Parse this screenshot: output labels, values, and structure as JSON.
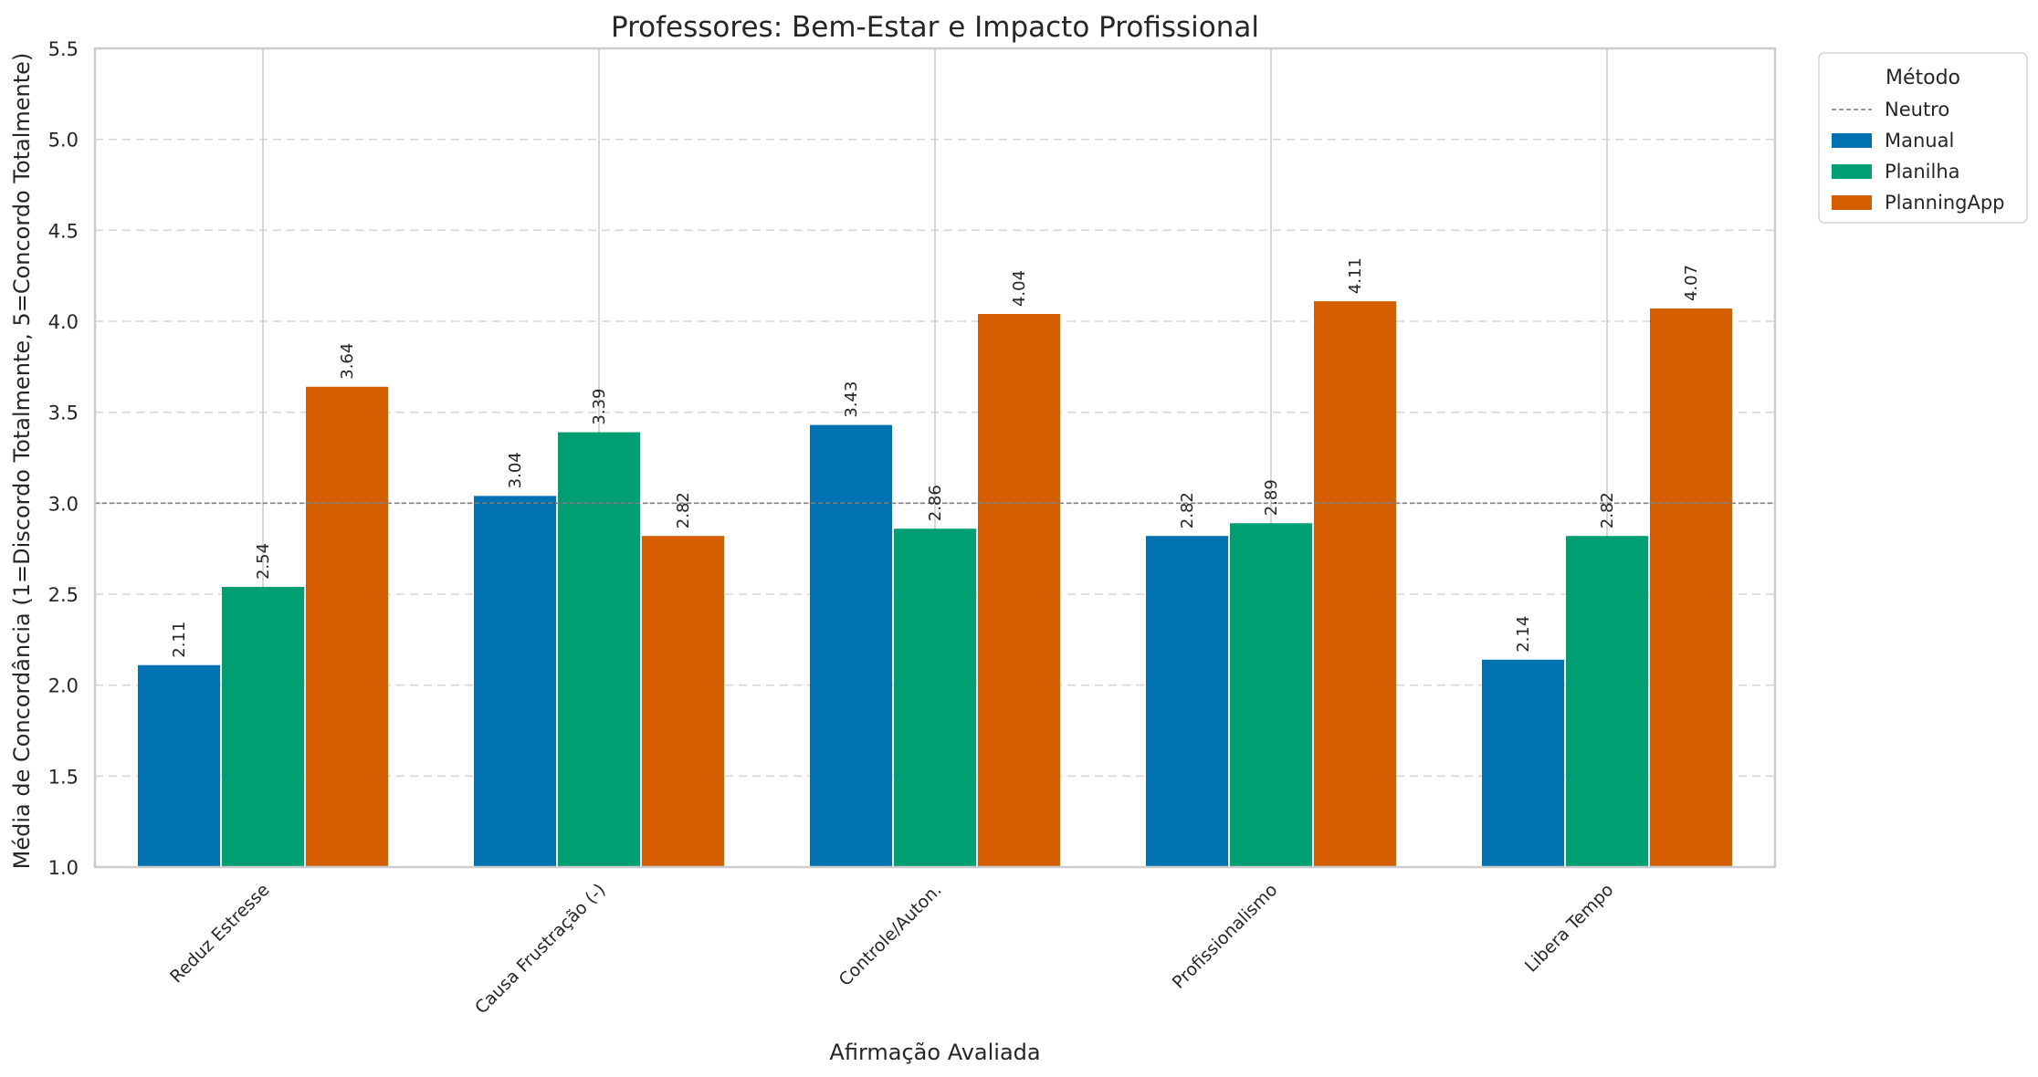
{
  "chart_data": {
    "type": "bar",
    "title": "Professores: Bem-Estar e Impacto Profissional",
    "xlabel": "Afirmação Avaliada",
    "ylabel": "Média de Concordância (1=Discordo Totalmente, 5=Concordo Totalmente)",
    "categories": [
      "Reduz Estresse",
      "Causa Frustração (-)",
      "Controle/Auton.",
      "Profissionalismo",
      "Libera Tempo"
    ],
    "series": [
      {
        "name": "Manual",
        "color": "#0072b2",
        "values": [
          2.11,
          3.04,
          3.43,
          2.82,
          2.14
        ]
      },
      {
        "name": "Planilha",
        "color": "#009e73",
        "values": [
          2.54,
          3.39,
          2.86,
          2.89,
          2.82
        ]
      },
      {
        "name": "PlanningApp",
        "color": "#d55e00",
        "values": [
          3.64,
          2.82,
          4.04,
          4.11,
          4.07
        ]
      }
    ],
    "value_labels": {
      "Manual": [
        "2.11",
        "3.04",
        "3.43",
        "2.82",
        "2.14"
      ],
      "Planilha": [
        "2.54",
        "3.39",
        "2.86",
        "2.89",
        "2.82"
      ],
      "PlanningApp": [
        "3.64",
        "2.82",
        "4.04",
        "4.11",
        "4.07"
      ]
    },
    "ylim": [
      1.0,
      5.5
    ],
    "yticks": [
      "1.0",
      "1.5",
      "2.0",
      "2.5",
      "3.0",
      "3.5",
      "4.0",
      "4.5",
      "5.0",
      "5.5"
    ],
    "reference_line": {
      "name": "Neutro",
      "value": 3.0,
      "color": "#808080",
      "style": "dashed"
    },
    "legend": {
      "title": "Método",
      "placement": "outside-top-right"
    },
    "grid": {
      "y": "dashed",
      "x": "solid"
    }
  }
}
